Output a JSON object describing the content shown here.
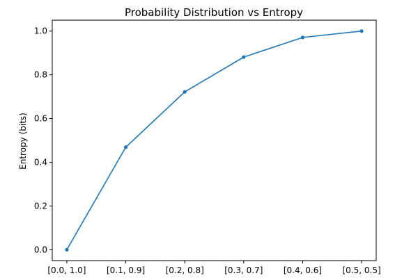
{
  "chart_data": {
    "type": "line",
    "title": "Probability Distribution vs Entropy",
    "xlabel": "",
    "ylabel": "Entropy (bits)",
    "categories": [
      "[0.0, 1.0]",
      "[0.1, 0.9]",
      "[0.2, 0.8]",
      "[0.3, 0.7]",
      "[0.4, 0.6]",
      "[0.5, 0.5]"
    ],
    "series": [
      {
        "values": [
          0.0,
          0.469,
          0.722,
          0.881,
          0.971,
          1.0
        ]
      }
    ],
    "yticks": [
      0.0,
      0.2,
      0.4,
      0.6,
      0.8,
      1.0
    ],
    "ytick_labels": [
      "0.0",
      "0.2",
      "0.4",
      "0.6",
      "0.8",
      "1.0"
    ],
    "ylim": [
      -0.05,
      1.05
    ],
    "grid": false,
    "marker": "circle",
    "line_color": "#1f77b4"
  }
}
